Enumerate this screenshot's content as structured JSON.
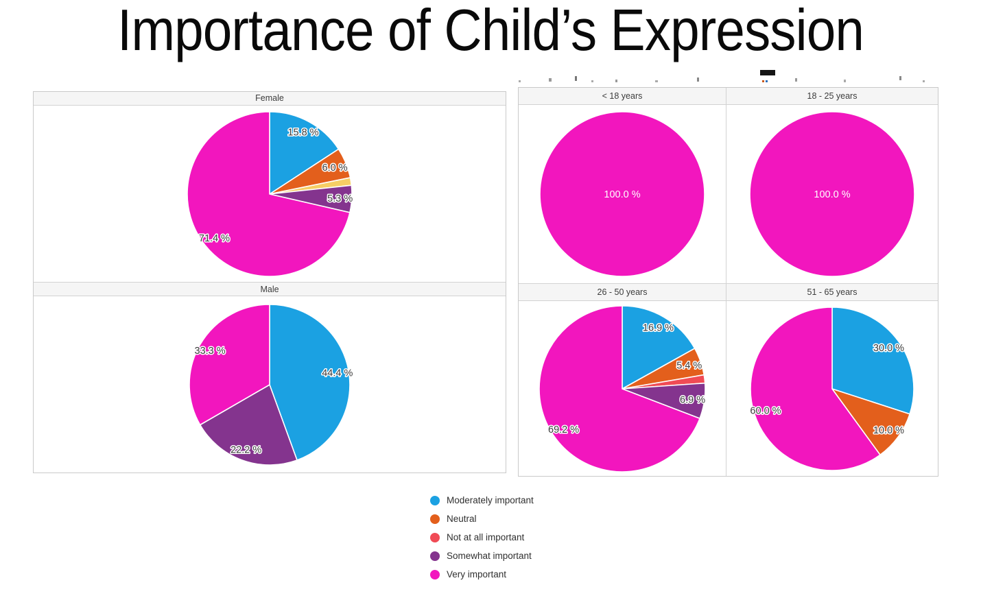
{
  "title": "Importance of Child’s Expression",
  "legend": {
    "items": [
      {
        "label": "Moderately important",
        "color": "#1BA1E2"
      },
      {
        "label": "Neutral",
        "color": "#E35F1C"
      },
      {
        "label": "Not at all important",
        "color": "#F04B55"
      },
      {
        "label": "Somewhat important",
        "color": "#84348E"
      },
      {
        "label": "Very important",
        "color": "#F216BE"
      }
    ]
  },
  "chart_data": [
    {
      "type": "pie",
      "title": "Female",
      "slices": [
        {
          "label": "Moderately important",
          "value": 15.8,
          "text": "15.8 %",
          "color": "#1BA1E2"
        },
        {
          "label": "Neutral",
          "value": 6.0,
          "text": "6.0 %",
          "color": "#E35F1C"
        },
        {
          "label": "",
          "value": 1.5,
          "text": "",
          "color": "#F6CE65"
        },
        {
          "label": "Somewhat important",
          "value": 5.3,
          "text": "5.3 %",
          "color": "#84348E"
        },
        {
          "label": "Very important",
          "value": 71.4,
          "text": "71.4 %",
          "color": "#F216BE"
        }
      ]
    },
    {
      "type": "pie",
      "title": "Male",
      "slices": [
        {
          "label": "Moderately important",
          "value": 44.4,
          "text": "44.4 %",
          "color": "#1BA1E2"
        },
        {
          "label": "Somewhat important",
          "value": 22.2,
          "text": "22.2 %",
          "color": "#84348E"
        },
        {
          "label": "Very important",
          "value": 33.3,
          "text": "33.3 %",
          "color": "#F216BE"
        }
      ]
    },
    {
      "type": "pie",
      "title": "< 18 years",
      "slices": [
        {
          "label": "Very important",
          "value": 100.0,
          "text": "100.0 %",
          "color": "#F216BE"
        }
      ]
    },
    {
      "type": "pie",
      "title": "18 - 25 years",
      "slices": [
        {
          "label": "Very important",
          "value": 100.0,
          "text": "100.0 %",
          "color": "#F216BE"
        }
      ]
    },
    {
      "type": "pie",
      "title": "26 - 50 years",
      "slices": [
        {
          "label": "Moderately important",
          "value": 16.9,
          "text": "16.9 %",
          "color": "#1BA1E2"
        },
        {
          "label": "Neutral",
          "value": 5.4,
          "text": "5.4 %",
          "color": "#E35F1C"
        },
        {
          "label": "Not at all important",
          "value": 1.6,
          "text": "",
          "color": "#F04B55"
        },
        {
          "label": "Somewhat important",
          "value": 6.9,
          "text": "6.9 %",
          "color": "#84348E"
        },
        {
          "label": "Very important",
          "value": 69.2,
          "text": "69.2 %",
          "color": "#F216BE"
        }
      ]
    },
    {
      "type": "pie",
      "title": "51 - 65 years",
      "slices": [
        {
          "label": "Moderately important",
          "value": 30.0,
          "text": "30.0 %",
          "color": "#1BA1E2"
        },
        {
          "label": "Neutral",
          "value": 10.0,
          "text": "10.0 %",
          "color": "#E35F1C"
        },
        {
          "label": "Very important",
          "value": 60.0,
          "text": "60.0 %",
          "color": "#F216BE"
        }
      ]
    }
  ]
}
